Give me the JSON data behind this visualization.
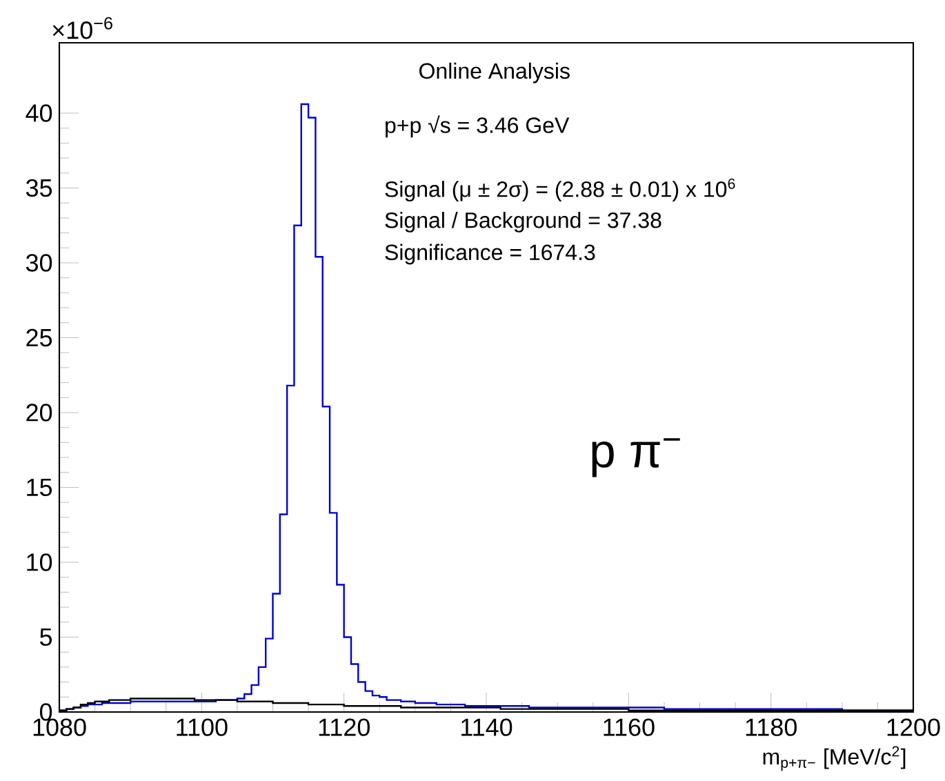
{
  "chart_data": {
    "type": "histogram",
    "xlabel": "m$_{p+π−}$ [MeV/c$^{2}$]",
    "annotations": [
      "×10$^{−6}$",
      "Online Analysis",
      "p+p  √s = 3.46 GeV",
      "Signal (μ ± 2σ) = (2.88 ± 0.01) x 10$^{6}$",
      "Signal / Background = 37.38",
      "Significance = 1674.3",
      "p π$^{−}$"
    ],
    "bins": [
      1080,
      1081,
      1082,
      1083,
      1084,
      1085,
      1086,
      1087,
      1088,
      1089,
      1090,
      1091,
      1092,
      1093,
      1094,
      1095,
      1096,
      1097,
      1098,
      1099,
      1100,
      1101,
      1102,
      1103,
      1104,
      1105,
      1106,
      1107,
      1108,
      1109,
      1110,
      1111,
      1112,
      1113,
      1114,
      1115,
      1116,
      1117,
      1118,
      1119,
      1120,
      1121,
      1122,
      1123,
      1124,
      1125,
      1126,
      1127,
      1128,
      1129,
      1130,
      1131,
      1132,
      1133,
      1134,
      1135,
      1136,
      1137,
      1138,
      1139,
      1140,
      1141,
      1142,
      1143,
      1144,
      1145,
      1146,
      1147,
      1148,
      1149,
      1150,
      1151,
      1152,
      1153,
      1154,
      1155,
      1156,
      1157,
      1158,
      1159,
      1160,
      1161,
      1162,
      1163,
      1164,
      1165,
      1166,
      1167,
      1168,
      1169,
      1170,
      1171,
      1172,
      1173,
      1174,
      1175,
      1176,
      1177,
      1178,
      1179,
      1180,
      1181,
      1182,
      1183,
      1184,
      1185,
      1186,
      1187,
      1188,
      1189,
      1190,
      1191,
      1192,
      1193,
      1194,
      1195,
      1196,
      1197,
      1198,
      1199,
      1200
    ],
    "series": [
      {
        "color": "#0000cc",
        "values": [
          0.1,
          0.2,
          0.3,
          0.4,
          0.5,
          0.5,
          0.6,
          0.6,
          0.6,
          0.6,
          0.7,
          0.7,
          0.7,
          0.7,
          0.7,
          0.7,
          0.7,
          0.7,
          0.7,
          0.7,
          0.7,
          0.7,
          0.8,
          0.8,
          0.8,
          0.9,
          1.2,
          1.8,
          3.0,
          4.9,
          7.9,
          13.2,
          21.8,
          32.5,
          40.6,
          39.7,
          30.4,
          20.4,
          13.3,
          8.5,
          5.0,
          3.2,
          2.0,
          1.4,
          1.1,
          1.0,
          0.8,
          0.8,
          0.7,
          0.7,
          0.6,
          0.6,
          0.6,
          0.5,
          0.5,
          0.5,
          0.5,
          0.4,
          0.4,
          0.4,
          0.4,
          0.4,
          0.4,
          0.4,
          0.4,
          0.4,
          0.3,
          0.3,
          0.3,
          0.3,
          0.3,
          0.3,
          0.3,
          0.3,
          0.3,
          0.3,
          0.3,
          0.3,
          0.3,
          0.3,
          0.3,
          0.3,
          0.3,
          0.3,
          0.3,
          0.2,
          0.2,
          0.2,
          0.2,
          0.2,
          0.2,
          0.2,
          0.2,
          0.2,
          0.2,
          0.2,
          0.2,
          0.2,
          0.2,
          0.2,
          0.2,
          0.2,
          0.2,
          0.2,
          0.2,
          0.2,
          0.2,
          0.2,
          0.2,
          0.2,
          0.1,
          0.1,
          0.1,
          0.1,
          0.1,
          0.1,
          0.1,
          0.1,
          0.1,
          0.1
        ]
      },
      {
        "color": "#000000",
        "values": [
          0.1,
          0.2,
          0.3,
          0.5,
          0.6,
          0.7,
          0.7,
          0.8,
          0.8,
          0.8,
          0.9,
          0.9,
          0.9,
          0.9,
          0.9,
          0.9,
          0.9,
          0.9,
          0.9,
          0.8,
          0.8,
          0.8,
          0.8,
          0.8,
          0.8,
          0.7,
          0.7,
          0.7,
          0.7,
          0.7,
          0.6,
          0.6,
          0.6,
          0.6,
          0.6,
          0.5,
          0.5,
          0.5,
          0.5,
          0.5,
          0.4,
          0.4,
          0.4,
          0.4,
          0.4,
          0.4,
          0.4,
          0.4,
          0.3,
          0.3,
          0.3,
          0.3,
          0.3,
          0.3,
          0.3,
          0.3,
          0.3,
          0.3,
          0.3,
          0.3,
          0.3,
          0.3,
          0.2,
          0.2,
          0.2,
          0.2,
          0.2,
          0.2,
          0.2,
          0.2,
          0.2,
          0.2,
          0.2,
          0.2,
          0.2,
          0.2,
          0.2,
          0.2,
          0.2,
          0.2,
          0.1,
          0.1,
          0.1,
          0.1,
          0.1,
          0.1,
          0.1,
          0.1,
          0.1,
          0.1,
          0.1,
          0.1,
          0.1,
          0.1,
          0.1,
          0.1,
          0.1,
          0.1,
          0.1,
          0.1,
          0.1,
          0.1,
          0.1,
          0.1,
          0.1,
          0.1,
          0.1,
          0.1,
          0.1,
          0.1,
          0.1,
          0.1,
          0.1,
          0.1,
          0.1,
          0.1,
          0.1,
          0.1,
          0.1,
          0.1
        ]
      }
    ],
    "xlim": [
      1080,
      1200
    ],
    "xticks": [
      1080,
      1100,
      1120,
      1140,
      1160,
      1180,
      1200
    ],
    "ylim": [
      0,
      44.7
    ],
    "yticks": [
      0,
      5,
      10,
      15,
      20,
      25,
      30,
      35,
      40
    ],
    "grid": false
  }
}
